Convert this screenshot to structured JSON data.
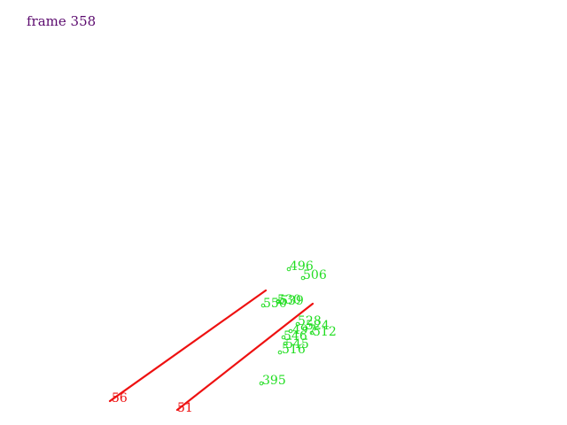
{
  "frame_label": "frame 358",
  "colors": {
    "frame_label": "#5b0a6e",
    "track_line": "#ee1111",
    "track_label": "#ee1111",
    "point": "#22dd22",
    "point_label": "#22dd22"
  },
  "tracks": [
    {
      "id": "56",
      "label": "56"
    },
    {
      "id": "51",
      "label": "51"
    }
  ],
  "points": [
    {
      "id": "496",
      "label": "496"
    },
    {
      "id": "506",
      "label": "506"
    },
    {
      "id": "530",
      "label": "530"
    },
    {
      "id": "539",
      "label": "539"
    },
    {
      "id": "550",
      "label": "550"
    },
    {
      "id": "528",
      "label": "528"
    },
    {
      "id": "524",
      "label": "524"
    },
    {
      "id": "512",
      "label": "512"
    },
    {
      "id": "497",
      "label": "497"
    },
    {
      "id": "546",
      "label": "546"
    },
    {
      "id": "545",
      "label": "545"
    },
    {
      "id": "516",
      "label": "516"
    },
    {
      "id": "395",
      "label": "395"
    }
  ]
}
